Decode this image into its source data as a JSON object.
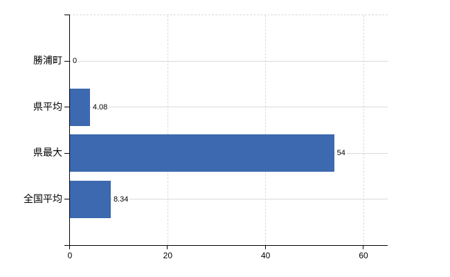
{
  "chart_data": {
    "type": "bar",
    "orientation": "horizontal",
    "title": "",
    "xlabel": "",
    "ylabel": "",
    "categories": [
      "勝浦町",
      "県平均",
      "県最大",
      "全国平均"
    ],
    "values": [
      0,
      4.08,
      54,
      8.34
    ],
    "value_labels": [
      "0",
      "4.08",
      "54",
      "8.34"
    ],
    "x_ticks": [
      0,
      20,
      40,
      60
    ],
    "xlim": [
      0,
      64.95
    ],
    "grid": true,
    "legend": false,
    "bar_color": "#3c69af",
    "axis_color": "#000000",
    "gridline_color": "#d9d9d9",
    "text_color": "#000000"
  }
}
